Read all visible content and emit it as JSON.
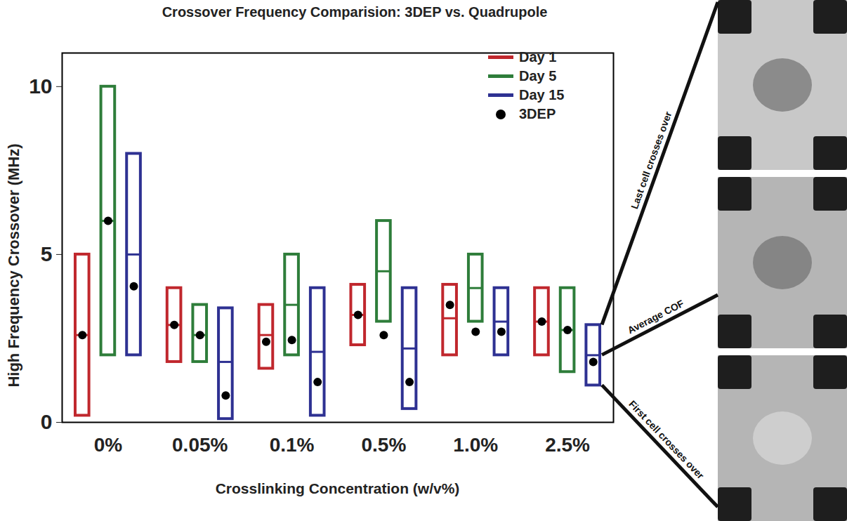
{
  "chart_data": {
    "type": "range",
    "title": "Crossover Frequency Comparision: 3DEP vs. Quadrupole",
    "x_label": "Crosslinking Concentration (w/v%)",
    "y_label": "High Frequency Crossover (MHz)",
    "categories": [
      "0%",
      "0.05%",
      "0.1%",
      "0.5%",
      "1.0%",
      "2.5%"
    ],
    "ylim": [
      0,
      11
    ],
    "yticks": [
      0,
      5,
      10
    ],
    "legend": "top-right",
    "series": [
      {
        "name": "Day 1",
        "color": "#c0272d",
        "low": [
          0.2,
          1.8,
          1.6,
          2.3,
          2.0,
          2.0
        ],
        "high": [
          5.0,
          4.0,
          3.5,
          4.1,
          4.1,
          4.0
        ],
        "average": [
          2.6,
          2.9,
          2.6,
          3.2,
          3.1,
          3.0
        ],
        "3DEP": [
          2.6,
          2.9,
          2.4,
          3.2,
          3.5,
          3.0
        ]
      },
      {
        "name": "Day 5",
        "color": "#2e7d3a",
        "low": [
          2.0,
          1.8,
          2.0,
          3.0,
          3.0,
          1.5
        ],
        "high": [
          10.0,
          3.5,
          5.0,
          6.0,
          5.0,
          4.0
        ],
        "average": [
          6.0,
          2.6,
          3.5,
          4.5,
          4.0,
          2.75
        ],
        "3DEP": [
          6.0,
          2.6,
          2.45,
          2.6,
          2.7,
          2.75
        ]
      },
      {
        "name": "Day 15",
        "color": "#2e3192",
        "low": [
          2.0,
          0.1,
          0.2,
          0.4,
          2.0,
          1.1
        ],
        "high": [
          8.0,
          3.4,
          4.0,
          4.0,
          4.0,
          2.9
        ],
        "average": [
          5.0,
          1.8,
          2.1,
          2.2,
          3.0,
          2.0
        ],
        "3DEP": [
          4.05,
          0.8,
          1.2,
          1.2,
          2.7,
          1.8
        ]
      }
    ],
    "marker_legend": {
      "name": "3DEP",
      "color": "#000000",
      "marker": "circle"
    },
    "annotations": [
      "Last cell crosses over",
      "Average COF",
      "First cell crosses over"
    ]
  }
}
